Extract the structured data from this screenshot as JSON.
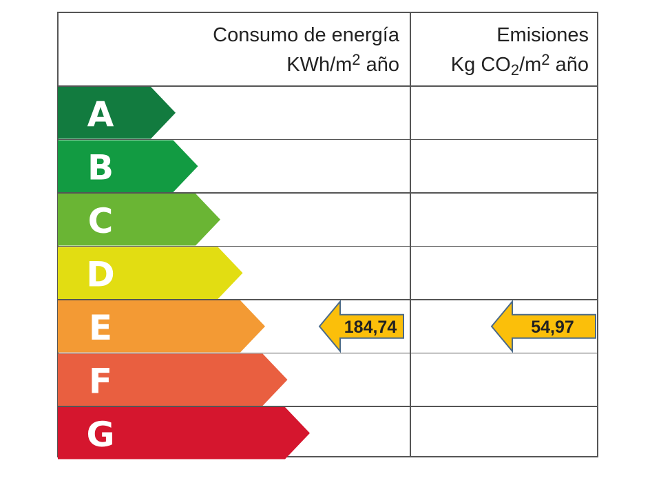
{
  "header": {
    "consumption_title": "Consumo de energía",
    "consumption_unit_prefix": "KWh/m",
    "consumption_unit_exp": "2",
    "consumption_unit_suffix": " año",
    "emissions_title": "Emisiones",
    "emissions_unit_prefix": "Kg CO",
    "emissions_unit_sub": "2",
    "emissions_unit_mid": "/m",
    "emissions_unit_exp": "2",
    "emissions_unit_suffix": " año"
  },
  "chart_data": {
    "type": "table",
    "classes": [
      {
        "letter": "A",
        "color": "#127b3f"
      },
      {
        "letter": "B",
        "color": "#129b42"
      },
      {
        "letter": "C",
        "color": "#6ab534"
      },
      {
        "letter": "D",
        "color": "#e2dd12"
      },
      {
        "letter": "E",
        "color": "#f39a34"
      },
      {
        "letter": "F",
        "color": "#e95f40"
      },
      {
        "letter": "G",
        "color": "#d5162e"
      }
    ],
    "consumption": {
      "class": "E",
      "value": "184,74"
    },
    "emissions": {
      "class": "E",
      "value": "54,97"
    },
    "indicator_color": "#fbbf0a",
    "indicator_border": "#4a6a8a"
  }
}
